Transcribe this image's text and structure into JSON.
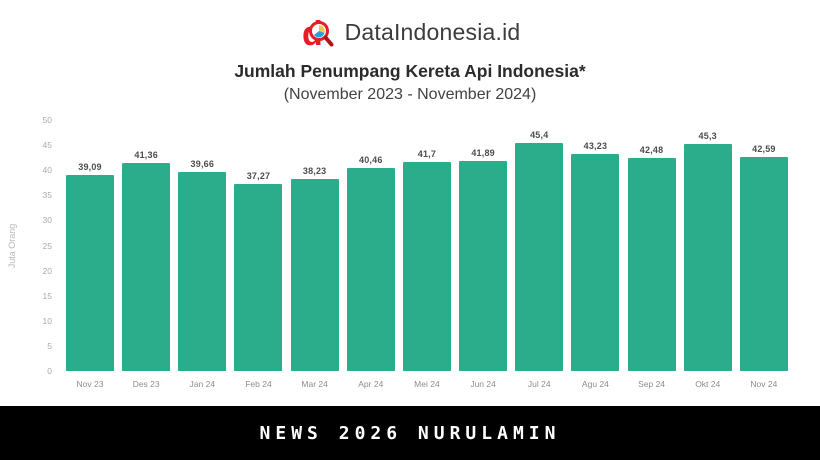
{
  "header": {
    "brand_name": "DataIndonesia.id",
    "title": "Jumlah Penumpang Kereta Api Indonesia*",
    "subtitle": "(November 2023 - November 2024)"
  },
  "chart_data": {
    "type": "bar",
    "title": "Jumlah Penumpang Kereta Api Indonesia*",
    "subtitle": "(November 2023 - November 2024)",
    "categories": [
      "Nov 23",
      "Des 23",
      "Jan 24",
      "Feb 24",
      "Mar 24",
      "Apr 24",
      "Mei 24",
      "Jun 24",
      "Jul 24",
      "Agu 24",
      "Sep 24",
      "Okt 24",
      "Nov 24"
    ],
    "values": [
      39.09,
      41.36,
      39.66,
      37.27,
      38.23,
      40.46,
      41.7,
      41.89,
      45.4,
      43.23,
      42.48,
      45.3,
      42.59
    ],
    "value_labels": [
      "39,09",
      "41,36",
      "39,66",
      "37,27",
      "38,23",
      "40,46",
      "41,7",
      "41,89",
      "45,4",
      "43,23",
      "42,48",
      "45,3",
      "42,59"
    ],
    "xlabel": "",
    "ylabel": "Juta Orang",
    "ylim": [
      0,
      50
    ],
    "yticks": [
      0,
      5,
      10,
      15,
      20,
      25,
      30,
      35,
      40,
      45,
      50
    ],
    "grid": false,
    "legend_position": "none",
    "bar_color": "#2BAC8B"
  },
  "colors": {
    "brand_red": "#E31E24",
    "brand_red_dark": "#B01318",
    "lens_blue": "#2D9CDB",
    "lens_yellow": "#F2C94C",
    "footer_bg": "#000000",
    "footer_text": "#FFFFFF"
  },
  "footer": {
    "text": "NEWS 2026 NURULAMIN"
  }
}
